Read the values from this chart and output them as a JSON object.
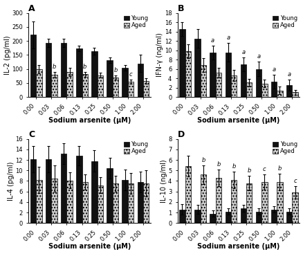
{
  "categories": [
    "0.00",
    "0.03",
    "0.06",
    "0.13",
    "0.25",
    "0.50",
    "1.00",
    "2.00"
  ],
  "A": {
    "title": "A",
    "ylabel": "IL-2 (pg/ml)",
    "xlabel": "Sodium arsenite (μM)",
    "ylim": [
      0,
      300
    ],
    "yticks": [
      0,
      50,
      100,
      150,
      200,
      250,
      300
    ],
    "young": [
      222,
      193,
      193,
      172,
      163,
      132,
      103,
      120
    ],
    "aged": [
      100,
      80,
      90,
      81,
      78,
      70,
      55,
      58
    ],
    "young_err": [
      48,
      15,
      15,
      10,
      12,
      10,
      10,
      30
    ],
    "aged_err": [
      15,
      10,
      15,
      8,
      8,
      8,
      8,
      10
    ],
    "young_sig": [
      "",
      "",
      "",
      "",
      "",
      "",
      "",
      ""
    ],
    "aged_sig": [
      "",
      "b",
      "",
      "b",
      "",
      "b",
      "c",
      ""
    ]
  },
  "B": {
    "title": "B",
    "ylabel": "IFN-γ (ng/ml)",
    "xlabel": "Sodium arsenite (μM)",
    "ylim": [
      0,
      18
    ],
    "yticks": [
      0,
      2,
      4,
      6,
      8,
      10,
      12,
      14,
      16,
      18
    ],
    "young": [
      14.5,
      12.5,
      9.5,
      9.5,
      7.0,
      6.0,
      3.3,
      2.5
    ],
    "aged": [
      9.8,
      6.8,
      5.2,
      4.6,
      3.1,
      2.9,
      1.4,
      1.0
    ],
    "young_err": [
      1.5,
      2.0,
      1.5,
      2.0,
      1.5,
      1.5,
      1.5,
      1.2
    ],
    "aged_err": [
      1.5,
      1.5,
      1.0,
      1.2,
      0.8,
      0.8,
      0.8,
      0.5
    ],
    "young_sig": [
      "",
      "",
      "a",
      "a",
      "a",
      "a",
      "a",
      "a"
    ],
    "aged_sig": [
      "",
      "",
      "",
      "",
      "",
      "",
      "",
      ""
    ]
  },
  "C": {
    "title": "C",
    "ylabel": "IL-4 (pg/ml)",
    "xlabel": "Sodium arsenite (μM)",
    "ylim": [
      0,
      16
    ],
    "yticks": [
      0,
      2,
      4,
      6,
      8,
      10,
      12,
      14,
      16
    ],
    "young": [
      12.2,
      12.2,
      13.2,
      12.8,
      11.8,
      10.4,
      8.2,
      7.8
    ],
    "aged": [
      8.2,
      8.5,
      8.1,
      7.8,
      7.2,
      7.5,
      7.5,
      7.5
    ],
    "young_err": [
      2.5,
      2.5,
      2.0,
      1.8,
      2.0,
      2.0,
      2.0,
      2.0
    ],
    "aged_err": [
      2.5,
      2.5,
      1.5,
      1.5,
      1.5,
      1.5,
      2.0,
      2.5
    ],
    "young_sig": [
      "",
      "",
      "",
      "",
      "",
      "",
      "",
      ""
    ],
    "aged_sig": [
      "",
      "",
      "",
      "",
      "",
      "",
      "",
      ""
    ]
  },
  "D": {
    "title": "D",
    "ylabel": "IL-10 (ng/ml)",
    "xlabel": "Sodium arsenite (μM)",
    "ylim": [
      0,
      8
    ],
    "yticks": [
      0,
      1,
      2,
      3,
      4,
      5,
      6,
      7,
      8
    ],
    "young": [
      1.3,
      1.3,
      0.9,
      1.1,
      1.4,
      1.1,
      1.3,
      1.1
    ],
    "aged": [
      5.4,
      4.6,
      4.3,
      4.1,
      3.8,
      3.9,
      3.9,
      2.9
    ],
    "young_err": [
      0.5,
      0.4,
      0.3,
      0.3,
      0.3,
      0.3,
      0.3,
      0.3
    ],
    "aged_err": [
      1.0,
      0.9,
      0.8,
      0.8,
      0.7,
      0.7,
      0.8,
      0.6
    ],
    "young_sig": [
      "",
      "",
      "",
      "",
      "",
      "",
      "",
      ""
    ],
    "aged_sig": [
      "",
      "b",
      "b",
      "b",
      "b",
      "c",
      "b",
      "c"
    ]
  },
  "young_color": "#111111",
  "aged_color": "#cccccc",
  "aged_hatch": "....",
  "bar_width": 0.38,
  "legend_young": "Young",
  "legend_aged": "Aged",
  "sig_fontsize": 6.0
}
